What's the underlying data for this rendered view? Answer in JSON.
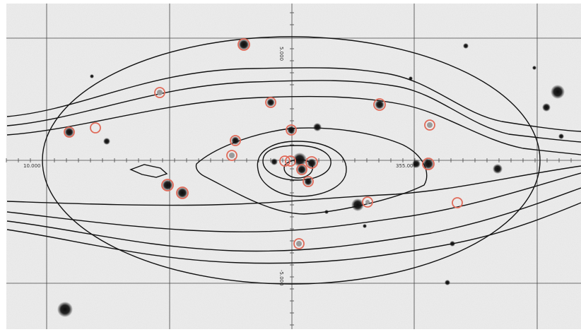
{
  "map": {
    "grid_labels": {
      "x_left": "10.000",
      "x_right": "355.000",
      "y_top": "5.000",
      "y_bottom": "-5.000"
    },
    "colors": {
      "background": "#eeeeee",
      "grid": "#444444",
      "contour": "#111111",
      "source_fill": "#111111",
      "marker_ring": "#e06b5a",
      "marker_inner": "#9a9a9a"
    },
    "layers": [
      "grayscale-sky-image",
      "coordinate-grid",
      "contour-lines",
      "outer-ellipse",
      "red-circle-markers"
    ]
  }
}
